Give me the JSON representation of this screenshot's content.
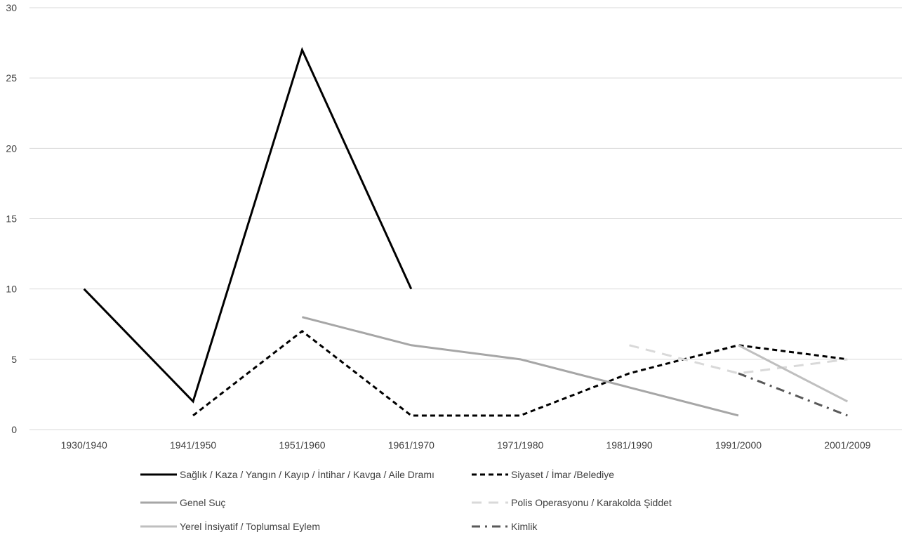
{
  "chart_data": {
    "type": "line",
    "title": "",
    "xlabel": "",
    "ylabel": "",
    "ylim": [
      0,
      30
    ],
    "yticks": [
      0,
      5,
      10,
      15,
      20,
      25,
      30
    ],
    "grid": true,
    "legend_position": "bottom",
    "categories": [
      "1930/1940",
      "1941/1950",
      "1951/1960",
      "1961/1970",
      "1971/1980",
      "1981/1990",
      "1991/2000",
      "2001/2009"
    ],
    "series": [
      {
        "name": "Sağlık / Kaza / Yangın / Kayıp / İntihar / Kavga / Aile Dramı",
        "values": [
          10,
          2,
          27,
          10,
          null,
          null,
          null,
          null
        ],
        "color": "#000000",
        "dash": "solid"
      },
      {
        "name": "Siyaset / İmar /Belediye",
        "values": [
          null,
          1,
          7,
          1,
          1,
          4,
          6,
          5
        ],
        "color": "#000000",
        "dash": "dashed"
      },
      {
        "name": "Genel Suç",
        "values": [
          null,
          null,
          8,
          6,
          5,
          3,
          1,
          null
        ],
        "color": "#a6a6a6",
        "dash": "solid"
      },
      {
        "name": "Polis Operasyonu / Karakolda Şiddet",
        "values": [
          null,
          null,
          null,
          null,
          null,
          6,
          4,
          5
        ],
        "color": "#d9d9d9",
        "dash": "long-dash"
      },
      {
        "name": "Yerel  İnsiyatif / Toplumsal Eylem",
        "values": [
          null,
          null,
          null,
          null,
          null,
          null,
          6,
          2
        ],
        "color": "#bfbfbf",
        "dash": "solid"
      },
      {
        "name": "Kimlik",
        "values": [
          null,
          null,
          null,
          null,
          null,
          null,
          4,
          1
        ],
        "color": "#595959",
        "dash": "dash-dot"
      }
    ]
  }
}
